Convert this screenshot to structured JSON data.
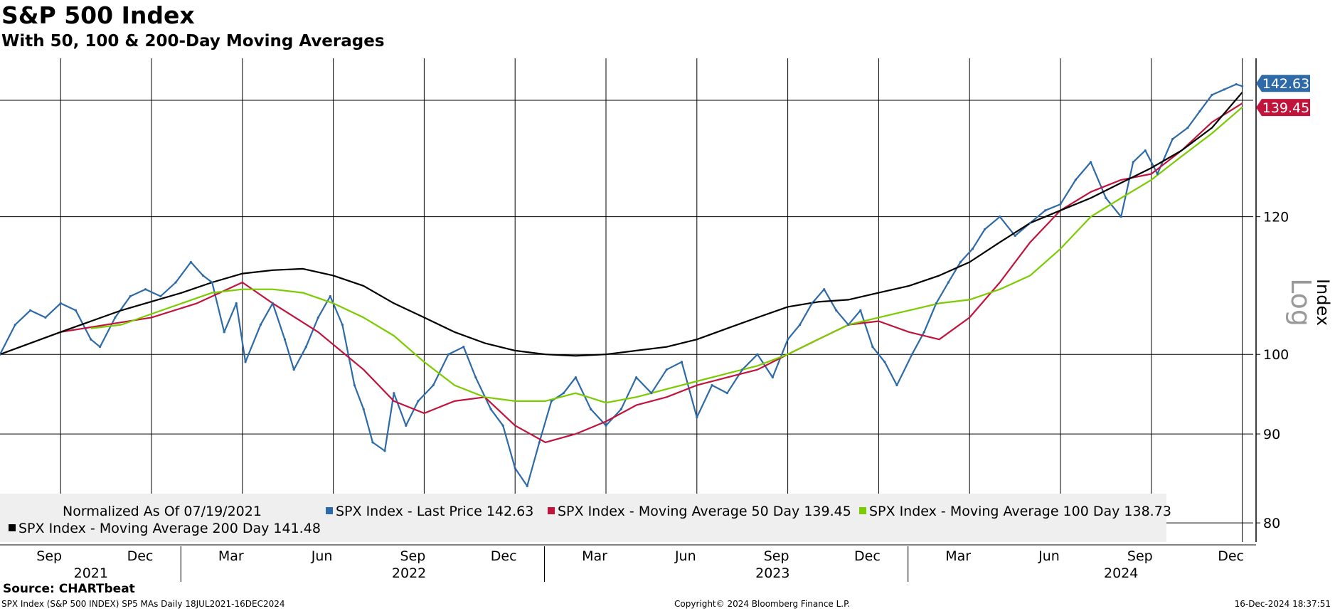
{
  "title": "S&P 500 Index",
  "subtitle": "With 50, 100 & 200-Day Moving Averages",
  "source_label": "Source: CHARTbeat",
  "footer": {
    "left": "SPX Index (S&P 500 INDEX) SP5 MAs  Daily 18JUL2021-16DEC2024",
    "center": "Copyright© 2024 Bloomberg Finance L.P.",
    "right": "16-Dec-2024 18:37:51"
  },
  "chart_data": {
    "type": "line",
    "title": "S&P 500 Index",
    "subtitle": "With 50, 100 & 200-Day Moving Averages",
    "ylabel": "Index",
    "scale_label": "Log",
    "yscale": "log",
    "ylim": [
      78,
      148
    ],
    "yticks": [
      80,
      90,
      100,
      120
    ],
    "x_month_ticks": [
      "Sep",
      "Dec",
      "Mar",
      "Jun",
      "Sep",
      "Dec",
      "Mar",
      "Jun",
      "Sep",
      "Dec",
      "Mar",
      "Jun",
      "Sep",
      "Dec"
    ],
    "x_year_labels": [
      "2021",
      "2022",
      "2023",
      "2024"
    ],
    "xlim_months": [
      0,
      41
    ],
    "normalized_note": "Normalized As Of 07/19/2021",
    "legend": [
      {
        "label": "SPX Index - Last Price 142.63",
        "color": "#2e6aa8"
      },
      {
        "label": "SPX Index - Moving Average 50 Day 139.45",
        "color": "#c0143c"
      },
      {
        "label": "SPX Index - Moving Average 100 Day 138.73",
        "color": "#7acc00"
      },
      {
        "label": "SPX Index - Moving Average 200 Day 141.48",
        "color": "#000000"
      }
    ],
    "last_value_badges": [
      {
        "text": "142.63",
        "value": 142.63,
        "color": "#2e6aa8"
      },
      {
        "text": "139.45",
        "value": 139.45,
        "color": "#c0143c"
      }
    ],
    "series": [
      {
        "name": "SPX Index - Last Price",
        "color": "#2e6aa8",
        "x": [
          0,
          0.5,
          1,
          1.5,
          2,
          2.5,
          3,
          3.3,
          3.8,
          4.3,
          4.8,
          5.3,
          5.8,
          6.3,
          6.7,
          7,
          7.4,
          7.8,
          8.1,
          8.6,
          9,
          9.4,
          9.7,
          10.1,
          10.5,
          10.9,
          11.3,
          11.7,
          12,
          12.3,
          12.7,
          13,
          13.4,
          13.8,
          14.3,
          14.8,
          15.3,
          15.7,
          16.2,
          16.6,
          17,
          17.4,
          17.8,
          18.2,
          18.6,
          19,
          19.5,
          20,
          20.5,
          21,
          21.5,
          22,
          22.5,
          23,
          23.5,
          24,
          24.5,
          25,
          25.5,
          26,
          26.4,
          26.8,
          27.2,
          27.6,
          28,
          28.4,
          28.8,
          29.2,
          29.6,
          30.1,
          30.5,
          30.9,
          31.3,
          31.7,
          32.1,
          32.5,
          33,
          33.5,
          34,
          34.5,
          35,
          35.5,
          36,
          36.5,
          37,
          37.4,
          37.8,
          38.2,
          38.7,
          39.2,
          39.6,
          40,
          40.4,
          40.8,
          41
        ],
        "values": [
          100,
          104,
          106,
          105,
          107,
          106,
          102,
          101,
          105,
          108,
          109,
          108,
          110,
          113,
          111,
          110,
          103,
          107,
          99,
          104,
          107,
          102,
          98,
          101,
          105,
          108,
          104,
          96,
          93,
          89,
          88,
          95,
          91,
          94,
          96,
          100,
          101,
          97,
          93,
          91,
          86,
          84,
          89,
          94,
          95,
          97,
          93,
          91,
          93,
          97,
          95,
          98,
          99,
          92,
          96,
          95,
          98,
          100,
          97,
          102,
          104,
          107,
          109,
          106,
          104,
          106,
          101,
          99,
          96,
          100,
          103,
          107,
          110,
          113,
          115,
          118,
          120,
          117,
          119,
          121,
          122,
          126,
          129,
          123,
          120,
          129,
          131,
          127,
          133,
          135,
          138,
          141,
          142,
          143,
          142.63
        ]
      },
      {
        "name": "SPX Index - Moving Average 50 Day",
        "color": "#c0143c",
        "x": [
          2,
          3.5,
          5,
          6.5,
          8,
          9,
          10.5,
          12,
          13,
          14,
          15,
          16,
          17,
          18,
          19,
          20,
          21,
          22,
          23,
          24,
          25,
          26,
          27,
          28,
          29,
          30,
          31,
          32,
          33,
          34,
          35,
          36,
          37,
          38,
          39,
          40,
          41
        ],
        "values": [
          103,
          104,
          105,
          107,
          110,
          107,
          103,
          98,
          94,
          92.5,
          94,
          94.5,
          91,
          89,
          90,
          91.5,
          93.5,
          94.5,
          96,
          97,
          98,
          100,
          102,
          104,
          104.5,
          103,
          102,
          105,
          110,
          116,
          121,
          124,
          126,
          127,
          131,
          136,
          139.45
        ]
      },
      {
        "name": "SPX Index - Moving Average 100 Day",
        "color": "#7acc00",
        "x": [
          3,
          4,
          5,
          6,
          7,
          8,
          9,
          10,
          11,
          12,
          13,
          14,
          15,
          16,
          17,
          18,
          19,
          20,
          21,
          22,
          23,
          24,
          25,
          26,
          27,
          28,
          29,
          30,
          31,
          32,
          33,
          34,
          35,
          36,
          37,
          38,
          39,
          40,
          41
        ],
        "values": [
          103.5,
          104,
          105.5,
          107,
          108.5,
          109,
          109,
          108.5,
          107,
          105,
          102.5,
          99,
          96,
          94.5,
          94,
          94,
          95,
          93.8,
          94.5,
          95.5,
          96.5,
          97.5,
          98.5,
          100,
          102,
          104,
          105,
          106,
          107,
          107.5,
          109,
          111,
          115,
          120,
          123,
          126,
          130,
          134,
          138.73
        ]
      },
      {
        "name": "SPX Index - Moving Average 200 Day",
        "color": "#000000",
        "x": [
          0,
          2,
          4,
          6,
          7,
          8,
          9,
          10,
          11,
          12,
          13,
          14,
          15,
          16,
          17,
          18,
          19,
          20,
          21,
          22,
          23,
          24,
          25,
          26,
          27,
          28,
          29,
          30,
          31,
          32,
          33,
          34,
          35,
          36,
          37,
          38,
          39,
          40,
          41
        ],
        "values": [
          100,
          103,
          106,
          108.5,
          110,
          111.3,
          111.8,
          112,
          111,
          109.5,
          107,
          105,
          103,
          101.5,
          100.5,
          100,
          99.8,
          100,
          100.5,
          101,
          102,
          103.5,
          105,
          106.5,
          107.2,
          107.5,
          108.5,
          109.5,
          111,
          113,
          116,
          119,
          121,
          123,
          125.5,
          128,
          131,
          135,
          141.48
        ]
      }
    ]
  }
}
